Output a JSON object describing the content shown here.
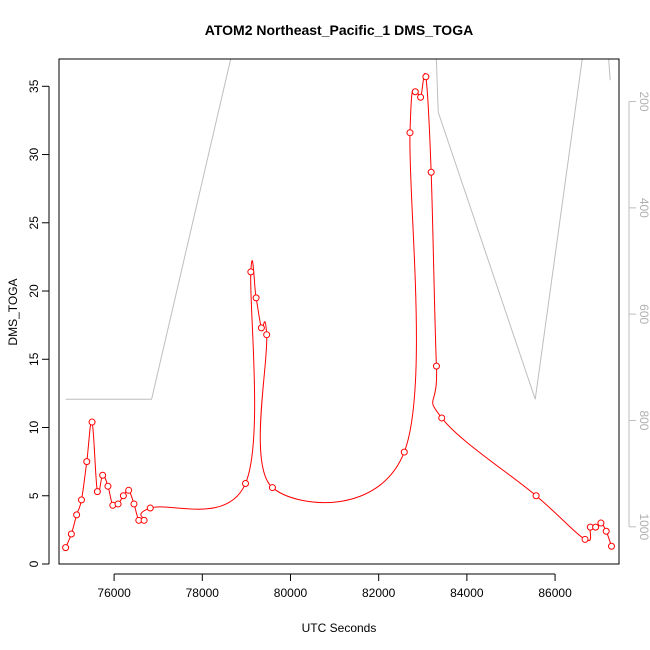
{
  "chart_data": {
    "type": "line",
    "title": "ATOM2 Northeast_Pacific_1 DMS_TOGA",
    "xlabel": "UTC Seconds",
    "ylabel": "DMS_TOGA",
    "xlim": [
      74750,
      87450
    ],
    "ylim": [
      0,
      37
    ],
    "x_ticks": [
      76000,
      78000,
      80000,
      82000,
      84000,
      86000
    ],
    "y_ticks": [
      0,
      5,
      10,
      15,
      20,
      25,
      30,
      35
    ],
    "right_axis": {
      "reversed": true,
      "lim": [
        120,
        1070
      ],
      "ticks": [
        200,
        400,
        600,
        800,
        1000
      ],
      "color": "#bebebe"
    },
    "series": [
      {
        "color": "#ff0000",
        "marker": "open-circle",
        "points": [
          [
            74900,
            1.2
          ],
          [
            75030,
            2.2
          ],
          [
            75150,
            3.6
          ],
          [
            75260,
            4.7
          ],
          [
            75380,
            7.5
          ],
          [
            75500,
            10.4
          ],
          [
            75620,
            5.3
          ],
          [
            75740,
            6.5
          ],
          [
            75860,
            5.7
          ],
          [
            75970,
            4.3
          ],
          [
            76090,
            4.4
          ],
          [
            76210,
            5.0
          ],
          [
            76330,
            5.4
          ],
          [
            76450,
            4.4
          ],
          [
            76560,
            3.2
          ],
          [
            76680,
            3.2
          ],
          [
            76820,
            4.1
          ],
          [
            78980,
            5.9
          ],
          [
            79100,
            21.4
          ],
          [
            79220,
            19.5
          ],
          [
            79340,
            17.3
          ],
          [
            79460,
            16.8
          ],
          [
            79590,
            5.6
          ],
          [
            82580,
            8.2
          ],
          [
            82710,
            31.6
          ],
          [
            82830,
            34.6
          ],
          [
            82950,
            34.2
          ],
          [
            83070,
            35.7
          ],
          [
            83190,
            28.7
          ],
          [
            83310,
            14.5
          ],
          [
            83430,
            10.7
          ],
          [
            85570,
            5.0
          ],
          [
            86680,
            1.8
          ],
          [
            86800,
            2.7
          ],
          [
            86920,
            2.7
          ],
          [
            87040,
            3.0
          ],
          [
            87160,
            2.4
          ],
          [
            87280,
            1.3
          ]
        ]
      },
      {
        "color": "#bebebe",
        "axis": "right",
        "points": [
          [
            74900,
            760
          ],
          [
            76850,
            760
          ],
          [
            78700,
            100
          ],
          [
            83300,
            100
          ],
          [
            83350,
            220
          ],
          [
            85550,
            760
          ],
          [
            86650,
            100
          ],
          [
            87200,
            100
          ],
          [
            87250,
            160
          ]
        ]
      }
    ]
  }
}
